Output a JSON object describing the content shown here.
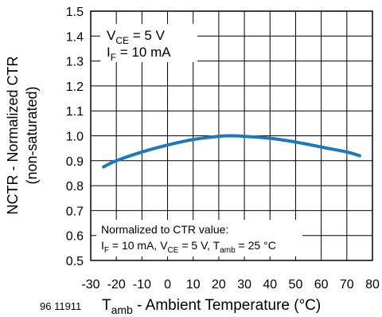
{
  "chart_data": {
    "type": "line",
    "figure_id": "96 11911",
    "title": "",
    "xlabel": {
      "main": "T",
      "sub": "amb",
      "rest": " - Ambient Temperature (°C)"
    },
    "ylabel": "NCTR - Normalized CTR",
    "ylabel2": "(non-saturated)",
    "xlim": [
      -30,
      80
    ],
    "ylim": [
      0.5,
      1.5
    ],
    "x_ticks": [
      -30,
      -20,
      -10,
      0,
      10,
      20,
      30,
      40,
      50,
      60,
      70,
      80
    ],
    "x_tick_labels": [
      "-30",
      "-20",
      "-10",
      "0",
      "10",
      "20",
      "30",
      "40",
      "50",
      "60",
      "70",
      "80"
    ],
    "y_ticks": [
      0.5,
      0.6,
      0.7,
      0.8,
      0.9,
      1.0,
      1.1,
      1.2,
      1.3,
      1.4,
      1.5
    ],
    "y_tick_labels": [
      "0.5",
      "0.6",
      "0.7",
      "0.8",
      "0.9",
      "1.0",
      "1.1",
      "1.2",
      "1.3",
      "1.4",
      "1.5"
    ],
    "grid": true,
    "series": [
      {
        "color": "#1f78b8",
        "x": [
          -25,
          -20,
          -10,
          0,
          10,
          20,
          25,
          30,
          40,
          50,
          60,
          70,
          75
        ],
        "y": [
          0.875,
          0.9,
          0.935,
          0.963,
          0.985,
          0.998,
          1.0,
          0.998,
          0.99,
          0.975,
          0.955,
          0.935,
          0.92
        ]
      }
    ],
    "annotation_top": {
      "line1": {
        "main": "V",
        "sub": "CE",
        "rest": " = 5 V"
      },
      "line2": {
        "main": "I",
        "sub": "F",
        "rest": " = 10 mA"
      }
    },
    "annotation_bottom": {
      "line1": "Normalized to CTR value:",
      "line2": {
        "p1": "I",
        "s1": "F",
        "p2": " = 10 mA, V",
        "s2": "CE",
        "p3": " = 5 V, T",
        "s3": "amb",
        "p4": " = 25 °C"
      }
    }
  }
}
